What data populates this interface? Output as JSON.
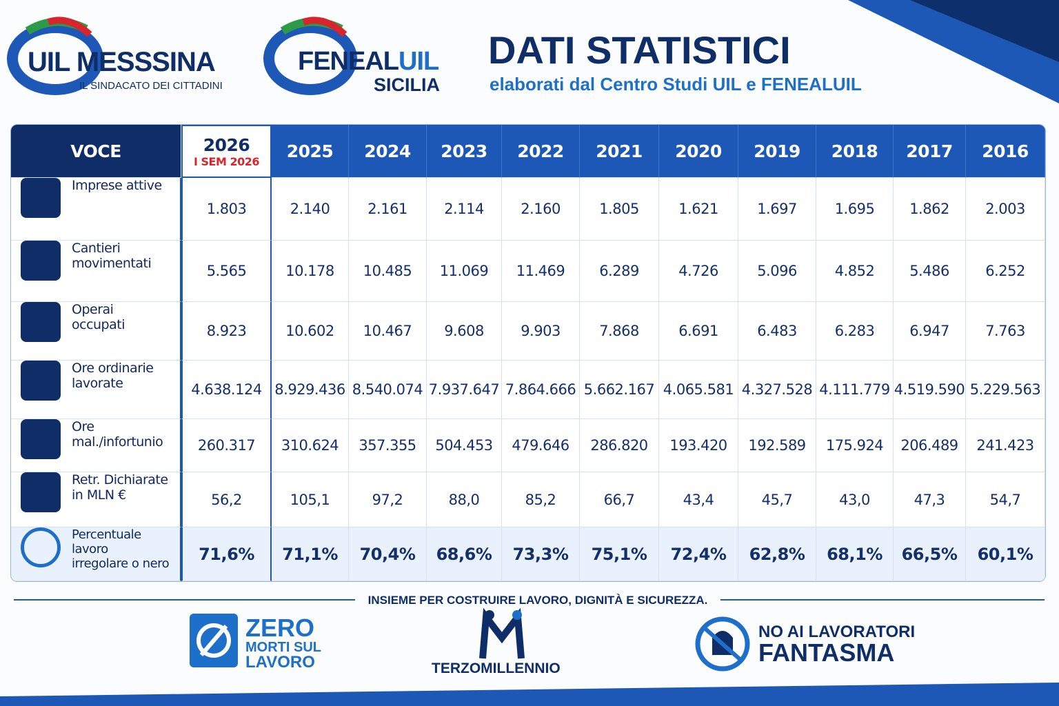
{
  "logos": [
    {
      "name": "UIL MESSSINA",
      "tagline": "IL SINDACATO DEI CITTADINI"
    },
    {
      "name_parts": [
        "FENEAL",
        "UIL"
      ],
      "tagline": "SICILIA"
    }
  ],
  "header": {
    "title": "DATI STATISTICI",
    "subtitle": "elaborati dal Centro Studi UIL e FENEALUIL"
  },
  "table": {
    "corner": "VOCE",
    "columns": [
      "2026",
      "2025",
      "2024",
      "2023",
      "2022",
      "2021",
      "2020",
      "2019",
      "2018",
      "2017",
      "2016"
    ],
    "column_note": "I SEM 2026",
    "rows": [
      {
        "label": [
          "Imprese attive"
        ],
        "cells": [
          "1.803",
          "2.140",
          "2.161",
          "2.114",
          "2.160",
          "1.805",
          "1.621",
          "1.697",
          "1.695",
          "1.862",
          "2.003"
        ]
      },
      {
        "label": [
          "Cantieri",
          "movimentati"
        ],
        "cells": [
          "5.565",
          "10.178",
          "10.485",
          "11.069",
          "11.469",
          "6.289",
          "4.726",
          "5.096",
          "4.852",
          "5.486",
          "6.252"
        ]
      },
      {
        "label": [
          "Operai",
          "occupati"
        ],
        "cells": [
          "8.923",
          "10.602",
          "10.467",
          "9.608",
          "9.903",
          "7.868",
          "6.691",
          "6.483",
          "6.283",
          "6.947",
          "7.763"
        ]
      },
      {
        "label": [
          "Ore ordinarie",
          "lavorate"
        ],
        "cells": [
          "4.638.124",
          "8.929.436",
          "8.540.074",
          "7.937.647",
          "7.864.666",
          "5.662.167",
          "4.065.581",
          "4.327.528",
          "4.111.779",
          "4.519.590",
          "5.229.563"
        ]
      },
      {
        "label": [
          "Ore mal./infortunio"
        ],
        "cells": [
          "260.317",
          "310.624",
          "357.355",
          "504.453",
          "479.646",
          "286.820",
          "193.420",
          "192.589",
          "175.924",
          "206.489",
          "241.423"
        ]
      },
      {
        "label": [
          "Retr. Dichiarate",
          "in MLN €"
        ],
        "cells": [
          "56,2",
          "105,1",
          "97,2",
          "88,0",
          "85,2",
          "66,7",
          "43,4",
          "45,7",
          "43,0",
          "47,3",
          "54,7"
        ]
      },
      {
        "label": [
          "Percentuale lavoro",
          "irregolare o nero"
        ],
        "cells": [
          "71,6%",
          "71,1%",
          "70,4%",
          "68,6%",
          "73,3%",
          "75,1%",
          "72,4%",
          "62,8%",
          "68,1%",
          "66,5%",
          "60,1%"
        ]
      }
    ]
  },
  "footer": {
    "slogan": "INSIEME PER COSTRUIRE LAVORO, DIGNITÀ E SICUREZZA.",
    "badges": [
      {
        "lines": [
          "ZERO",
          "MORTI SUL",
          "LAVORO"
        ]
      },
      {
        "lines": [
          "TERZOMILLENNIO"
        ]
      },
      {
        "lines": [
          "NO AI LAVORATORI",
          "FANTASMA"
        ]
      }
    ]
  }
}
